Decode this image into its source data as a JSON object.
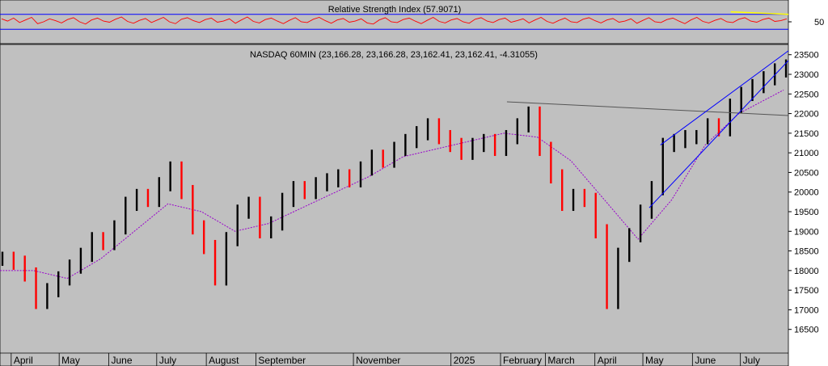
{
  "chart_data": [
    {
      "type": "line",
      "title": "Relative Strength Index (57.9071)",
      "ylabel": "",
      "xlabel": "",
      "y_ticks": [
        50
      ],
      "ylim": [
        0,
        100
      ],
      "bands": [
        30,
        70
      ],
      "grid": false,
      "colors": {
        "line": "#ff0000",
        "band": "#0000ff",
        "trend": "#ffff00"
      },
      "series": [
        {
          "values": [
            58,
            52,
            60,
            48,
            55,
            62,
            45,
            50,
            58,
            53,
            47,
            56,
            61,
            50,
            44,
            55,
            60,
            52,
            49,
            57,
            63,
            51,
            46,
            54,
            59,
            48,
            55,
            62,
            50,
            45,
            57,
            61,
            53,
            48,
            56,
            60,
            49,
            52,
            58,
            46,
            55,
            63,
            51,
            47,
            56,
            60,
            52,
            45,
            54,
            61,
            50,
            48,
            57,
            62,
            53,
            46,
            55,
            59,
            49,
            52,
            58,
            47,
            44,
            55,
            61,
            50,
            48,
            56,
            60,
            52,
            45,
            54,
            62,
            51,
            47,
            55,
            59,
            50,
            46,
            57,
            61,
            52,
            48,
            56,
            60,
            49,
            53,
            58,
            47,
            55,
            62,
            51,
            46,
            54,
            60,
            50,
            48,
            57,
            61,
            53,
            47,
            55,
            59,
            49,
            52,
            58,
            46,
            54,
            61,
            50,
            48,
            56,
            60,
            52,
            45,
            55,
            62,
            51,
            47,
            54,
            59,
            50,
            48,
            57,
            61,
            52,
            49,
            56,
            60,
            51,
            53,
            58
          ]
        }
      ],
      "annotations": [
        {
          "type": "trendline",
          "x0": "2025-06-25",
          "y0": 77,
          "x1": "2025-07-31",
          "y1": 70
        }
      ]
    },
    {
      "type": "line",
      "title": "NASDAQ 60MIN (23,166.28, 23,166.28, 23,162.41, 23,162.41, -4.31055)",
      "xlabel": "",
      "ylabel": "",
      "ylim": [
        16000,
        23700
      ],
      "y_ticks": [
        16500,
        17000,
        17500,
        18000,
        18500,
        19000,
        19500,
        20000,
        20500,
        21000,
        21500,
        22000,
        22500,
        23000,
        23500
      ],
      "x_ticks": [
        "April",
        "May",
        "June",
        "July",
        "August",
        "September",
        "November",
        "2025",
        "February",
        "March",
        "April",
        "May",
        "June",
        "July"
      ],
      "x_tick_dates": [
        "2024-04-01",
        "2024-05-01",
        "2024-06-01",
        "2024-07-01",
        "2024-08-01",
        "2024-09-01",
        "2024-11-01",
        "2025-01-01",
        "2025-02-01",
        "2025-03-01",
        "2025-04-01",
        "2025-05-01",
        "2025-06-01",
        "2025-07-01"
      ],
      "grid": false,
      "colors": {
        "up": "#000000",
        "down": "#ff0000",
        "moving_average": "#9900cc",
        "trend": "#0000ff",
        "resistance": "#555555"
      },
      "series": [
        {
          "name": "",
          "x": [
            "2024-03-25",
            "2024-04-01",
            "2024-04-08",
            "2024-04-15",
            "2024-04-22",
            "2024-04-29",
            "2024-05-06",
            "2024-05-13",
            "2024-05-20",
            "2024-05-27",
            "2024-06-03",
            "2024-06-10",
            "2024-06-17",
            "2024-06-24",
            "2024-07-01",
            "2024-07-08",
            "2024-07-15",
            "2024-07-22",
            "2024-07-29",
            "2024-08-05",
            "2024-08-12",
            "2024-08-19",
            "2024-08-26",
            "2024-09-02",
            "2024-09-09",
            "2024-09-16",
            "2024-09-23",
            "2024-09-30",
            "2024-10-07",
            "2024-10-14",
            "2024-10-21",
            "2024-10-28",
            "2024-11-04",
            "2024-11-11",
            "2024-11-18",
            "2024-11-25",
            "2024-12-02",
            "2024-12-09",
            "2024-12-16",
            "2024-12-23",
            "2024-12-30",
            "2025-01-06",
            "2025-01-13",
            "2025-01-20",
            "2025-01-27",
            "2025-02-03",
            "2025-02-10",
            "2025-02-17",
            "2025-02-24",
            "2025-03-03",
            "2025-03-10",
            "2025-03-17",
            "2025-03-24",
            "2025-03-31",
            "2025-04-07",
            "2025-04-14",
            "2025-04-21",
            "2025-04-28",
            "2025-05-05",
            "2025-05-12",
            "2025-05-19",
            "2025-05-26",
            "2025-06-02",
            "2025-06-09",
            "2025-06-16",
            "2025-06-23",
            "2025-06-30",
            "2025-07-07",
            "2025-07-14",
            "2025-07-21",
            "2025-07-28"
          ],
          "close": [
            18300,
            18200,
            17900,
            17200,
            17500,
            17800,
            18100,
            18400,
            18800,
            18700,
            19100,
            19700,
            19900,
            19800,
            20200,
            20600,
            20000,
            19100,
            18600,
            17800,
            18800,
            19500,
            19700,
            19000,
            19200,
            19800,
            20100,
            20000,
            20200,
            20300,
            20400,
            20300,
            20600,
            20900,
            20800,
            21100,
            21300,
            21500,
            21700,
            21400,
            21200,
            21000,
            21200,
            21300,
            21100,
            21400,
            21700,
            22000,
            21100,
            20400,
            19700,
            19900,
            19800,
            19000,
            17200,
            18400,
            18900,
            19500,
            20100,
            21200,
            21300,
            21400,
            21400,
            21700,
            21600,
            22200,
            22500,
            22700,
            22900,
            23100,
            23200
          ]
        },
        {
          "name": "",
          "x": [
            "2024-03-25",
            "2024-04-15",
            "2024-05-06",
            "2024-05-27",
            "2024-06-17",
            "2024-07-08",
            "2024-07-29",
            "2024-08-19",
            "2024-09-09",
            "2024-09-30",
            "2024-10-21",
            "2024-11-11",
            "2024-12-02",
            "2024-12-23",
            "2025-01-13",
            "2025-02-03",
            "2025-02-24",
            "2025-03-17",
            "2025-04-07",
            "2025-04-28",
            "2025-05-19",
            "2025-06-09",
            "2025-06-30",
            "2025-07-28"
          ],
          "values": [
            18000,
            18000,
            17800,
            18300,
            19000,
            19700,
            19500,
            19000,
            19200,
            19600,
            20000,
            20400,
            20900,
            21100,
            21300,
            21500,
            21400,
            20800,
            19800,
            18800,
            19800,
            21200,
            22000,
            22600
          ]
        }
      ],
      "annotations": [
        {
          "type": "trendline",
          "name": "resistance",
          "x0": "2025-02-05",
          "y0": 22300,
          "x1": "2025-07-31",
          "y1": 21950
        },
        {
          "type": "trendline",
          "name": "channel-upper",
          "x0": "2025-05-12",
          "y0": 21200,
          "x1": "2025-07-31",
          "y1": 23600
        },
        {
          "type": "trendline",
          "name": "channel-lower",
          "x0": "2025-05-05",
          "y0": 19600,
          "x1": "2025-07-31",
          "y1": 23350
        }
      ]
    }
  ]
}
